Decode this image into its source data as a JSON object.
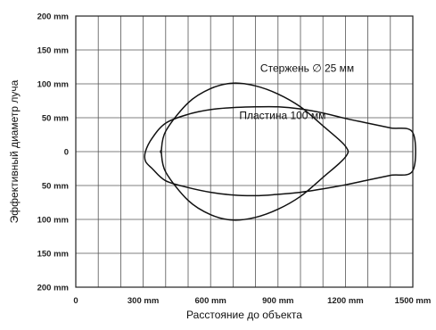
{
  "chart_data": {
    "type": "line",
    "title": "",
    "xlabel": "Расстояние до объекта",
    "ylabel": "Эффективный диаметр луча",
    "xlim": [
      0,
      1500
    ],
    "ylim": [
      -200,
      200
    ],
    "x_ticks": [
      {
        "value": 0,
        "label": "0"
      },
      {
        "value": 300,
        "label": "300 mm"
      },
      {
        "value": 600,
        "label": "600 mm"
      },
      {
        "value": 900,
        "label": "900 mm"
      },
      {
        "value": 1200,
        "label": "1200 mm"
      },
      {
        "value": 1500,
        "label": "1500 mm"
      }
    ],
    "y_ticks": [
      {
        "value": 200,
        "label": "200 mm"
      },
      {
        "value": 150,
        "label": "150 mm"
      },
      {
        "value": 100,
        "label": "100 mm"
      },
      {
        "value": 50,
        "label": "50 mm"
      },
      {
        "value": 0,
        "label": "0"
      },
      {
        "value": -50,
        "label": "50 mm"
      },
      {
        "value": -100,
        "label": "100 mm"
      },
      {
        "value": -150,
        "label": "150 mm"
      },
      {
        "value": -200,
        "label": "200 mm"
      }
    ],
    "grid": true,
    "series": [
      {
        "name": "Стержень ∅ 25 мм",
        "x": [
          380,
          400,
          500,
          600,
          700,
          800,
          900,
          1000,
          1100,
          1200,
          1200,
          1100,
          1000,
          900,
          800,
          700,
          600,
          500,
          400,
          380
        ],
        "y": [
          0,
          30,
          72,
          93,
          101,
          97,
          85,
          66,
          38,
          8,
          -8,
          -38,
          -66,
          -85,
          -97,
          -101,
          -93,
          -72,
          -30,
          0
        ]
      },
      {
        "name": "Пластина 100 мм",
        "x": [
          310,
          340,
          400,
          500,
          600,
          700,
          800,
          900,
          1000,
          1100,
          1200,
          1300,
          1400,
          1500,
          1500,
          1400,
          1300,
          1200,
          1100,
          1000,
          900,
          800,
          700,
          600,
          500,
          400,
          340,
          310
        ],
        "y": [
          0,
          20,
          42,
          55,
          62,
          65,
          66,
          66,
          63,
          57,
          49,
          42,
          35,
          28,
          -28,
          -35,
          -42,
          -49,
          -55,
          -60,
          -63,
          -65,
          -64,
          -60,
          -53,
          -43,
          -25,
          -14
        ]
      }
    ],
    "annotations": [
      {
        "text": "Стержень ∅ 25 мм",
        "x": 1030,
        "y": 118
      },
      {
        "text": "Пластина 100 мм",
        "x": 920,
        "y": 48
      }
    ]
  }
}
